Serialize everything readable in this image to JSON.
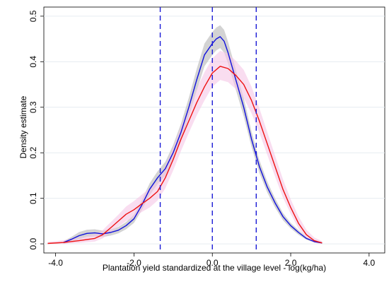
{
  "chart_data": {
    "type": "line",
    "title": "",
    "xlabel": "Plantation yield standardized at the village level - log(kg/ha)",
    "ylabel": "Density estimate",
    "xlim": [
      -4.3,
      4.4
    ],
    "ylim": [
      -0.02,
      0.52
    ],
    "x_ticks": [
      -4.0,
      -2.0,
      0.0,
      2.0,
      4.0
    ],
    "x_tick_labels": [
      "-4.0",
      "-2.0",
      "0.0",
      "2.0",
      "4.0"
    ],
    "y_ticks": [
      0.0,
      0.1,
      0.2,
      0.3,
      0.4,
      0.5
    ],
    "y_tick_labels": [
      "0.0",
      "0.1",
      "0.2",
      "0.3",
      "0.4",
      "0.5"
    ],
    "grid": "y",
    "vertical_lines": [
      {
        "x": -1.33,
        "color": "#1a1ad6",
        "style": "dashed"
      },
      {
        "x": 0.0,
        "color": "#1a1ad6",
        "style": "dashed"
      },
      {
        "x": 1.12,
        "color": "#1a1ad6",
        "style": "dashed"
      }
    ],
    "series": [
      {
        "color": "#1010dd",
        "band_color": "#c4c4c4",
        "x": [
          -3.8,
          -3.6,
          -3.4,
          -3.2,
          -3.0,
          -2.8,
          -2.6,
          -2.4,
          -2.2,
          -2.0,
          -1.8,
          -1.6,
          -1.4,
          -1.3,
          -1.2,
          -1.0,
          -0.8,
          -0.6,
          -0.4,
          -0.2,
          0.0,
          0.1,
          0.2,
          0.3,
          0.4,
          0.6,
          0.8,
          1.0,
          1.2,
          1.4,
          1.6,
          1.8,
          2.0,
          2.2,
          2.4,
          2.6,
          2.8
        ],
        "y": [
          0.003,
          0.01,
          0.018,
          0.023,
          0.024,
          0.022,
          0.025,
          0.03,
          0.04,
          0.055,
          0.085,
          0.12,
          0.145,
          0.155,
          0.165,
          0.2,
          0.245,
          0.3,
          0.36,
          0.415,
          0.44,
          0.45,
          0.455,
          0.445,
          0.42,
          0.36,
          0.3,
          0.23,
          0.17,
          0.125,
          0.09,
          0.06,
          0.04,
          0.025,
          0.012,
          0.005,
          0.002
        ],
        "lower": [
          0.0,
          0.005,
          0.01,
          0.015,
          0.016,
          0.015,
          0.018,
          0.023,
          0.032,
          0.046,
          0.074,
          0.107,
          0.131,
          0.14,
          0.15,
          0.183,
          0.226,
          0.279,
          0.336,
          0.39,
          0.415,
          0.425,
          0.43,
          0.42,
          0.396,
          0.338,
          0.28,
          0.213,
          0.156,
          0.113,
          0.08,
          0.052,
          0.034,
          0.02,
          0.009,
          0.003,
          0.0
        ],
        "upper": [
          0.006,
          0.015,
          0.026,
          0.031,
          0.032,
          0.029,
          0.032,
          0.037,
          0.048,
          0.064,
          0.096,
          0.133,
          0.159,
          0.17,
          0.18,
          0.217,
          0.264,
          0.321,
          0.384,
          0.44,
          0.465,
          0.475,
          0.48,
          0.47,
          0.444,
          0.382,
          0.32,
          0.247,
          0.184,
          0.137,
          0.1,
          0.068,
          0.046,
          0.03,
          0.015,
          0.007,
          0.004
        ]
      },
      {
        "color": "#ee1111",
        "band_color": "#f5c6e6",
        "x": [
          -4.2,
          -3.8,
          -3.4,
          -3.0,
          -2.8,
          -2.6,
          -2.4,
          -2.2,
          -2.0,
          -1.8,
          -1.6,
          -1.4,
          -1.2,
          -1.0,
          -0.8,
          -0.6,
          -0.4,
          -0.2,
          0.0,
          0.2,
          0.4,
          0.6,
          0.8,
          1.0,
          1.2,
          1.4,
          1.6,
          1.8,
          2.0,
          2.2,
          2.4,
          2.6,
          2.8
        ],
        "y": [
          0.001,
          0.003,
          0.007,
          0.012,
          0.02,
          0.035,
          0.05,
          0.065,
          0.075,
          0.088,
          0.1,
          0.115,
          0.145,
          0.185,
          0.23,
          0.27,
          0.31,
          0.345,
          0.375,
          0.39,
          0.385,
          0.37,
          0.35,
          0.315,
          0.27,
          0.22,
          0.17,
          0.12,
          0.08,
          0.045,
          0.02,
          0.007,
          0.002
        ],
        "lower": [
          0.0,
          0.0,
          0.002,
          0.005,
          0.012,
          0.025,
          0.038,
          0.05,
          0.058,
          0.07,
          0.08,
          0.095,
          0.122,
          0.161,
          0.204,
          0.244,
          0.282,
          0.315,
          0.345,
          0.36,
          0.355,
          0.34,
          0.32,
          0.287,
          0.244,
          0.196,
          0.148,
          0.102,
          0.066,
          0.034,
          0.012,
          0.002,
          0.0
        ],
        "upper": [
          0.004,
          0.008,
          0.014,
          0.021,
          0.03,
          0.047,
          0.064,
          0.082,
          0.094,
          0.108,
          0.122,
          0.137,
          0.17,
          0.211,
          0.258,
          0.298,
          0.34,
          0.377,
          0.407,
          0.424,
          0.418,
          0.402,
          0.382,
          0.345,
          0.298,
          0.246,
          0.194,
          0.142,
          0.098,
          0.06,
          0.031,
          0.014,
          0.006
        ]
      }
    ]
  }
}
